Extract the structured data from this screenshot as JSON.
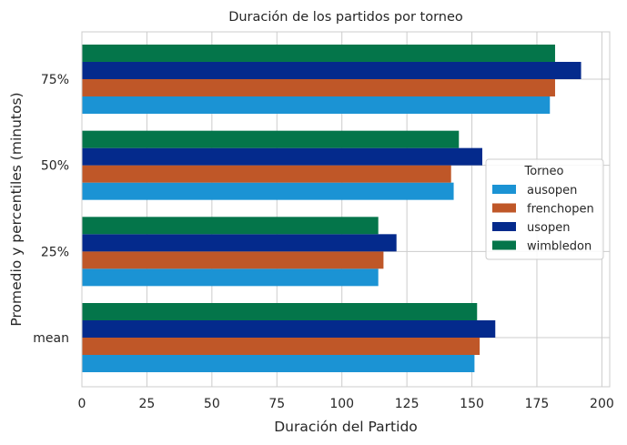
{
  "chart_data": {
    "type": "bar",
    "orientation": "horizontal",
    "title": "Duración de los partidos por torneo",
    "xlabel": "Duración del Partido",
    "ylabel": "Promedio y percentiles (minutos)",
    "categories": [
      "mean",
      "25%",
      "50%",
      "75%"
    ],
    "xlim": [
      0,
      203
    ],
    "xticks": [
      0,
      25,
      50,
      75,
      100,
      125,
      150,
      175,
      200
    ],
    "grid": true,
    "legend": {
      "title": "Torneo",
      "placement": "center-right"
    },
    "series": [
      {
        "name": "ausopen",
        "color": "#1b93d4",
        "values": [
          151,
          114,
          143,
          180
        ]
      },
      {
        "name": "frenchopen",
        "color": "#bf5728",
        "values": [
          153,
          116,
          142,
          182
        ]
      },
      {
        "name": "usopen",
        "color": "#042a8c",
        "values": [
          159,
          121,
          154,
          192
        ]
      },
      {
        "name": "wimbledon",
        "color": "#04754a",
        "values": [
          152,
          114,
          145,
          182
        ]
      }
    ]
  }
}
